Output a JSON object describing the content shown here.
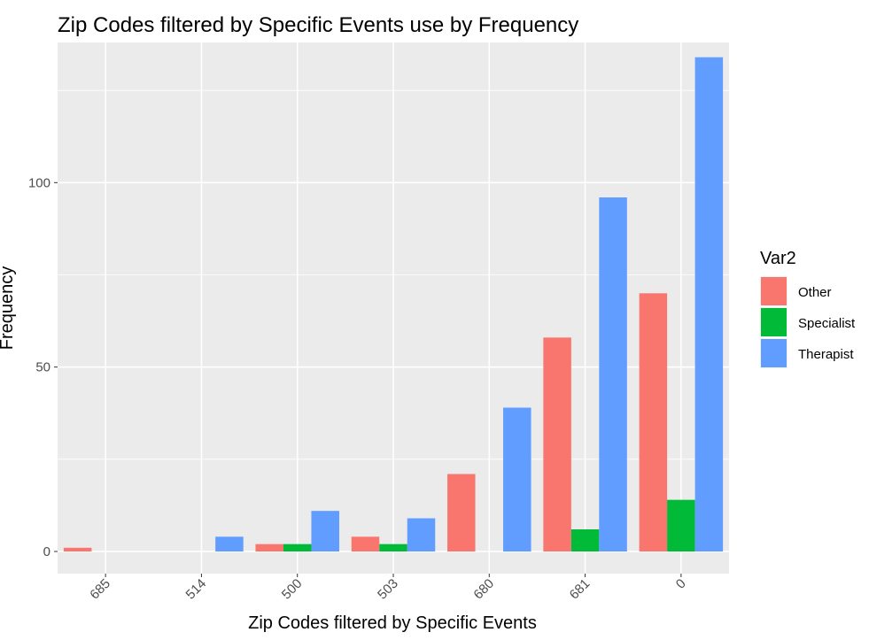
{
  "chart_data": {
    "type": "bar",
    "title": "Zip Codes filtered by Specific Events use by Frequency",
    "xlabel": "Zip Codes filtered by Specific Events",
    "ylabel": "Frequency",
    "categories": [
      "685",
      "514",
      "500",
      "503",
      "680",
      "681",
      "0"
    ],
    "ylim": [
      -6,
      138
    ],
    "yticks": [
      0,
      50,
      100
    ],
    "grid": true,
    "legend": {
      "title": "Var2",
      "placement": "right"
    },
    "series": [
      {
        "name": "Other",
        "color": "#F8766D",
        "values": [
          1,
          0,
          2,
          4,
          21,
          58,
          70
        ]
      },
      {
        "name": "Specialist",
        "color": "#00BA38",
        "values": [
          0,
          0,
          2,
          2,
          0,
          6,
          14
        ]
      },
      {
        "name": "Therapist",
        "color": "#619CFF",
        "values": [
          0,
          4,
          11,
          9,
          39,
          96,
          134
        ]
      }
    ]
  }
}
